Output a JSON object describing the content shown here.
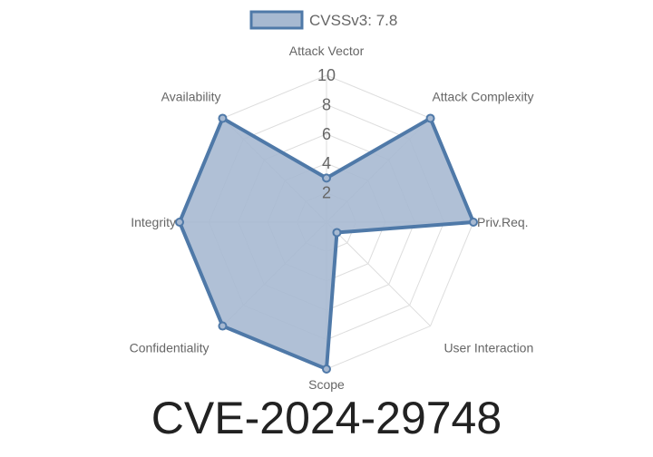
{
  "chart_data": {
    "type": "radar",
    "title": "CVE-2024-29748",
    "axes": [
      "Attack Vector",
      "Attack Complexity",
      "Priv.Req.",
      "User Interaction",
      "Scope",
      "Confidentiality",
      "Integrity",
      "Availability"
    ],
    "series": [
      {
        "name": "CVSSv3: 7.8",
        "values": [
          3,
          10,
          10,
          1,
          10,
          10,
          10,
          10
        ]
      }
    ],
    "rlim": [
      0,
      10
    ],
    "ticks": [
      2,
      4,
      6,
      8,
      10
    ],
    "grid": true,
    "legend": "top",
    "colors": {
      "line": "#4f79a8",
      "fill": "#a7b9d1",
      "grid": "#dddddd",
      "text": "#666666"
    }
  }
}
